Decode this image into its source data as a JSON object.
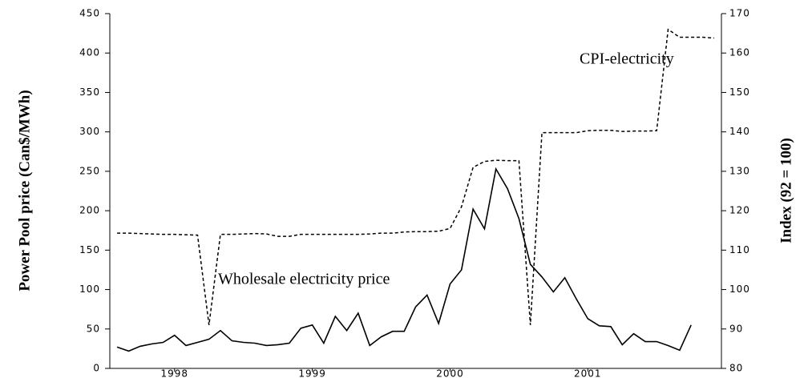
{
  "chart_data": {
    "type": "line",
    "y_label": "Power Pool price (Can$/MWh)",
    "y2_label": "Index (92 = 100)",
    "x": [
      1997.583,
      1997.667,
      1997.75,
      1997.833,
      1997.917,
      1998,
      1998.083,
      1998.167,
      1998.25,
      1998.333,
      1998.417,
      1998.5,
      1998.583,
      1998.667,
      1998.75,
      1998.833,
      1998.917,
      1999,
      1999.083,
      1999.167,
      1999.25,
      1999.333,
      1999.417,
      1999.5,
      1999.583,
      1999.667,
      1999.75,
      1999.833,
      1999.917,
      2000,
      2000.083,
      2000.167,
      2000.25,
      2000.333,
      2000.417,
      2000.5,
      2000.583,
      2000.667,
      2000.75,
      2000.833,
      2000.917,
      2001,
      2001.083,
      2001.167,
      2001.25,
      2001.333,
      2001.417,
      2001.5,
      2001.583,
      2001.667,
      2001.75,
      2001.833,
      2001.917
    ],
    "xlim": [
      1997.53,
      2001.97
    ],
    "xticks": [
      1998,
      1999,
      2000,
      2001
    ],
    "ylim": [
      0,
      450
    ],
    "yticks": [
      0,
      50,
      100,
      150,
      200,
      250,
      300,
      350,
      400,
      450
    ],
    "y2lim": [
      80,
      170
    ],
    "y2ticks": [
      80,
      90,
      100,
      110,
      120,
      130,
      140,
      150,
      160,
      170
    ],
    "series": [
      {
        "name": "Wholesale electricity price",
        "color": "#000000",
        "line_style": "solid",
        "values": [
          27,
          22,
          28,
          31,
          33,
          42,
          29,
          33,
          37,
          48,
          35,
          33,
          32,
          29,
          30,
          32,
          51,
          55,
          32,
          66,
          48,
          70,
          29,
          40,
          47,
          47,
          78,
          93,
          57,
          107,
          125,
          202,
          177,
          253,
          228,
          190,
          132,
          116,
          97,
          115,
          88,
          63,
          54,
          53,
          30,
          44,
          34,
          34,
          29,
          23,
          55,
          null,
          null
        ]
      },
      {
        "name": "CPI-electricity",
        "color": "#000000",
        "line_style": "dashed",
        "axis": "y2",
        "values": [
          114.3,
          114.3,
          114.2,
          114.1,
          114.0,
          114.0,
          113.9,
          113.8,
          91,
          114,
          114,
          114.1,
          114.2,
          114.1,
          113.5,
          113.5,
          114.0,
          114,
          114,
          114,
          114,
          114,
          114.1,
          114.3,
          114.3,
          114.6,
          114.7,
          114.7,
          114.8,
          115.5,
          121,
          131,
          132.5,
          132.8,
          132.7,
          132.7,
          91,
          139.8,
          139.8,
          139.8,
          139.8,
          140.3,
          140.4,
          140.4,
          140.1,
          140.2,
          140.2,
          140.3,
          166,
          164,
          164,
          164,
          163.8
        ]
      }
    ]
  }
}
